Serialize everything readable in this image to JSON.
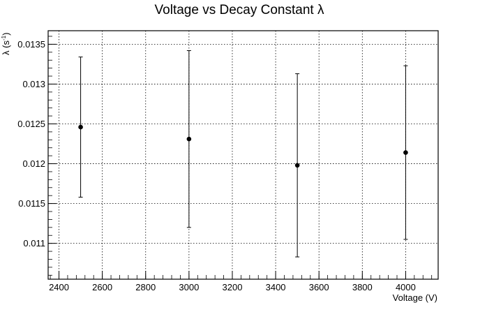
{
  "chart_data": {
    "type": "scatter",
    "title": "Voltage vs Decay Constant λ",
    "xlabel": "Voltage (V)",
    "ylabel": "λ (s",
    "ylabel_superscript": "-1",
    "ylabel_close": ")",
    "xlim": [
      2350,
      4150
    ],
    "ylim": [
      0.01055,
      0.01367
    ],
    "xticks": [
      2400,
      2600,
      2800,
      3000,
      3200,
      3400,
      3600,
      3800,
      4000
    ],
    "xtick_labels": [
      "2400",
      "2600",
      "2800",
      "3000",
      "3200",
      "3400",
      "3600",
      "3800",
      "4000"
    ],
    "yticks": [
      0.011,
      0.0115,
      0.012,
      0.0125,
      0.013,
      0.0135
    ],
    "ytick_labels": [
      "0.011",
      "0.0115",
      "0.012",
      "0.0125",
      "0.013",
      "0.0135"
    ],
    "grid": true,
    "series": [
      {
        "x": [
          2500,
          3000,
          3500,
          4000
        ],
        "y": [
          0.01246,
          0.01231,
          0.01198,
          0.01214
        ],
        "yerr": [
          0.00088,
          0.00111,
          0.00115,
          0.00109
        ]
      }
    ]
  },
  "colors": {
    "marker": "#000000",
    "grid": "#000000",
    "frame": "#000000"
  }
}
